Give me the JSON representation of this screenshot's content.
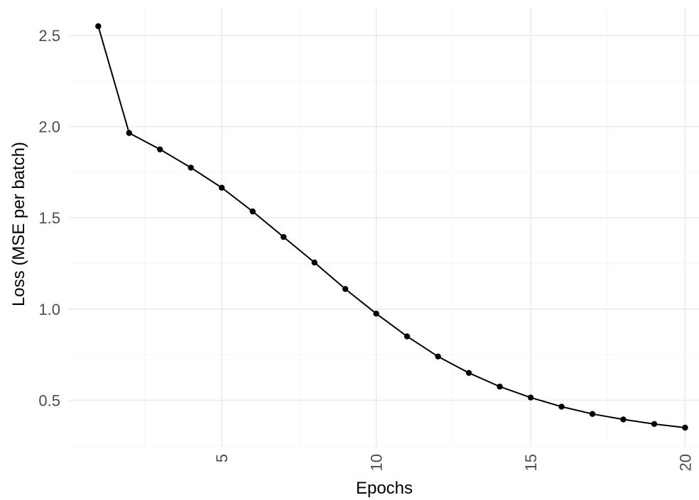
{
  "chart_data": {
    "type": "line",
    "title": "",
    "xlabel": "Epochs",
    "ylabel": "Loss (MSE per batch)",
    "x": [
      1,
      2,
      3,
      4,
      5,
      6,
      7,
      8,
      9,
      10,
      11,
      12,
      13,
      14,
      15,
      16,
      17,
      18,
      19,
      20
    ],
    "series": [
      {
        "values": [
          2.55,
          1.965,
          1.875,
          1.775,
          1.665,
          1.535,
          1.395,
          1.255,
          1.11,
          0.975,
          0.85,
          0.74,
          0.65,
          0.575,
          0.515,
          0.465,
          0.425,
          0.395,
          0.37,
          0.35
        ]
      }
    ],
    "xlim": [
      0.05,
      20.45
    ],
    "ylim": [
      0.245,
      2.655
    ],
    "x_ticks": [
      5,
      10,
      15,
      20
    ],
    "x_tick_labels": [
      "5",
      "10",
      "15",
      "20"
    ],
    "y_ticks": [
      0.5,
      1.0,
      1.5,
      2.0,
      2.5
    ],
    "y_tick_labels": [
      "0.5",
      "1.0",
      "1.5",
      "2.0",
      "2.5"
    ],
    "x_tick_label_rotation": "vertical",
    "grid": true,
    "legend": "none",
    "colors": {
      "line": "#000000",
      "points": "#000000",
      "grid_major": "#ebebeb",
      "grid_minor": "#f5f5f5",
      "tick_text": "#4d4d4d"
    }
  }
}
